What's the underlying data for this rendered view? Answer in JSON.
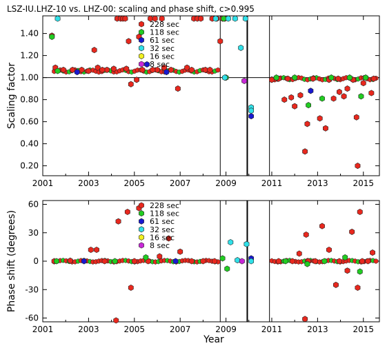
{
  "title": "LSZ-IU.LHZ-10 vs. LHZ-00: scaling and phase shift, c>0.995",
  "colors": {
    "228 sec": "#e8281e",
    "118 sec": "#22cc22",
    "61 sec": "#1818d0",
    "32 sec": "#30e0e8",
    "16 sec": "#f0f020",
    "8 sec": "#c828d8"
  },
  "chart_data": [
    {
      "type": "scatter",
      "ylabel": "Scaling factor",
      "xlabel": "",
      "xlim": [
        2001.0,
        2015.7
      ],
      "ylim": [
        0.11,
        1.56
      ],
      "x_ticks": [
        2001,
        2003,
        2005,
        2007,
        2009,
        2011,
        2013,
        2015
      ],
      "y_ticks": [
        0.2,
        0.4,
        0.6,
        0.8,
        1.0,
        1.2,
        1.4
      ],
      "y_tick_labels": [
        "0.20",
        "0.40",
        "0.60",
        "0.80",
        "1.00",
        "1.20",
        "1.40"
      ],
      "reference_line": 1.0,
      "vertical_lines": [
        {
          "x": 2008.75,
          "style": "thin"
        },
        {
          "x": 2009.93,
          "style": "thick"
        },
        {
          "x": 2010.9,
          "style": "thin"
        }
      ],
      "legend": [
        "228 sec",
        "118 sec",
        "61 sec",
        "32 sec",
        "16 sec",
        "8 sec"
      ],
      "series": [
        {
          "name": "228 sec",
          "points": [
            [
              2001.4,
              1.38
            ],
            [
              2001.55,
              1.09
            ],
            [
              2001.9,
              1.07
            ],
            [
              2002.3,
              1.07
            ],
            [
              2002.7,
              1.07
            ],
            [
              2003.0,
              1.06
            ],
            [
              2003.25,
              1.25
            ],
            [
              2003.4,
              1.09
            ],
            [
              2003.8,
              1.07
            ],
            [
              2004.1,
              1.08
            ],
            [
              2004.25,
              1.55
            ],
            [
              2004.4,
              1.55
            ],
            [
              2004.5,
              1.55
            ],
            [
              2004.6,
              1.55
            ],
            [
              2004.65,
              1.08
            ],
            [
              2004.75,
              1.33
            ],
            [
              2004.85,
              0.94
            ],
            [
              2005.1,
              0.98
            ],
            [
              2005.2,
              1.37
            ],
            [
              2005.35,
              1.07
            ],
            [
              2005.7,
              1.55
            ],
            [
              2005.9,
              1.55
            ],
            [
              2006.0,
              1.07
            ],
            [
              2006.2,
              1.55
            ],
            [
              2006.3,
              1.09
            ],
            [
              2006.9,
              0.9
            ],
            [
              2007.3,
              1.09
            ],
            [
              2007.6,
              1.55
            ],
            [
              2007.75,
              1.55
            ],
            [
              2007.9,
              1.55
            ],
            [
              2008.1,
              1.07
            ],
            [
              2008.4,
              1.55
            ],
            [
              2008.6,
              1.55
            ],
            [
              2008.75,
              1.33
            ],
            [
              2008.85,
              1.55
            ],
            [
              2008.95,
              1.55
            ],
            [
              2011.0,
              0.98
            ],
            [
              2011.3,
              0.99
            ],
            [
              2011.55,
              0.8
            ],
            [
              2011.7,
              0.99
            ],
            [
              2011.85,
              0.82
            ],
            [
              2012.0,
              0.74
            ],
            [
              2012.25,
              0.84
            ],
            [
              2012.45,
              0.33
            ],
            [
              2012.55,
              0.58
            ],
            [
              2012.8,
              0.99
            ],
            [
              2013.1,
              0.63
            ],
            [
              2013.35,
              0.54
            ],
            [
              2013.5,
              0.98
            ],
            [
              2013.7,
              0.81
            ],
            [
              2013.9,
              0.99
            ],
            [
              2013.95,
              0.87
            ],
            [
              2014.15,
              0.83
            ],
            [
              2014.3,
              0.9
            ],
            [
              2014.55,
              0.98
            ],
            [
              2014.7,
              0.64
            ],
            [
              2014.75,
              0.2
            ],
            [
              2015.0,
              0.95
            ],
            [
              2015.35,
              0.86
            ],
            [
              2015.45,
              0.99
            ],
            [
              2003.6,
              1.07
            ],
            [
              2005.8,
              1.07
            ],
            [
              2006.6,
              1.07
            ],
            [
              2007.5,
              1.07
            ],
            [
              2008.3,
              1.07
            ]
          ]
        },
        {
          "name": "118 sec",
          "points": [
            [
              2001.4,
              1.37
            ],
            [
              2001.65,
              1.06
            ],
            [
              2008.9,
              1.55
            ],
            [
              2009.0,
              1.0
            ],
            [
              2012.6,
              0.75
            ],
            [
              2013.2,
              0.81
            ],
            [
              2014.9,
              0.83
            ],
            [
              2015.1,
              1.0
            ],
            [
              2011.2,
              1.0
            ],
            [
              2012.0,
              1.0
            ],
            [
              2013.6,
              1.0
            ],
            [
              2014.4,
              1.0
            ]
          ]
        },
        {
          "name": "61 sec",
          "points": [
            [
              2005.55,
              1.12
            ],
            [
              2010.1,
              0.65
            ],
            [
              2012.7,
              0.88
            ],
            [
              2002.5,
              1.05
            ],
            [
              2006.4,
              1.05
            ]
          ]
        },
        {
          "name": "32 sec",
          "points": [
            [
              2001.65,
              1.55
            ],
            [
              2008.55,
              1.55
            ],
            [
              2009.1,
              1.55
            ],
            [
              2009.4,
              1.55
            ],
            [
              2009.65,
              1.27
            ],
            [
              2009.85,
              1.55
            ],
            [
              2010.1,
              0.73
            ],
            [
              2010.1,
              0.7
            ],
            [
              2008.95,
              1.0
            ]
          ]
        },
        {
          "name": "16 sec",
          "points": []
        },
        {
          "name": "8 sec",
          "points": [
            [
              2009.8,
              0.97
            ]
          ]
        }
      ]
    },
    {
      "type": "scatter",
      "ylabel": "Phase shift (degrees)",
      "xlabel": "Year",
      "xlim": [
        2001.0,
        2015.7
      ],
      "ylim": [
        -64,
        64
      ],
      "x_ticks": [
        2001,
        2003,
        2005,
        2007,
        2009,
        2011,
        2013,
        2015
      ],
      "y_ticks": [
        -60,
        -30,
        0,
        30,
        60
      ],
      "y_tick_labels": [
        "-60",
        "-30",
        "0",
        "30",
        "60"
      ],
      "vertical_lines": [
        {
          "x": 2008.75,
          "style": "thin"
        },
        {
          "x": 2009.93,
          "style": "thick"
        },
        {
          "x": 2010.9,
          "style": "thin"
        }
      ],
      "legend": [
        "228 sec",
        "118 sec",
        "61 sec",
        "32 sec",
        "16 sec",
        "8 sec"
      ],
      "series": [
        {
          "name": "228 sec",
          "points": [
            [
              2001.5,
              0
            ],
            [
              2002.2,
              0.5
            ],
            [
              2003.1,
              12
            ],
            [
              2003.35,
              12
            ],
            [
              2004.2,
              -66
            ],
            [
              2004.3,
              42
            ],
            [
              2004.7,
              52
            ],
            [
              2004.85,
              -28
            ],
            [
              2005.2,
              56
            ],
            [
              2005.6,
              0
            ],
            [
              2006.1,
              5
            ],
            [
              2006.5,
              24
            ],
            [
              2007.0,
              10
            ],
            [
              2008.0,
              0
            ],
            [
              2008.5,
              0
            ],
            [
              2011.3,
              0
            ],
            [
              2011.9,
              0
            ],
            [
              2012.2,
              8
            ],
            [
              2012.45,
              -61
            ],
            [
              2012.5,
              28
            ],
            [
              2012.6,
              0
            ],
            [
              2013.2,
              37
            ],
            [
              2013.5,
              12
            ],
            [
              2013.8,
              -25
            ],
            [
              2013.95,
              0
            ],
            [
              2014.3,
              -10
            ],
            [
              2014.5,
              31
            ],
            [
              2014.75,
              -28
            ],
            [
              2014.85,
              52
            ],
            [
              2014.95,
              0
            ],
            [
              2015.4,
              9
            ],
            [
              2003.7,
              0
            ],
            [
              2005.0,
              0
            ],
            [
              2007.5,
              0
            ],
            [
              2012.9,
              0
            ],
            [
              2015.2,
              0
            ]
          ]
        },
        {
          "name": "118 sec",
          "points": [
            [
              2001.6,
              0
            ],
            [
              2004.15,
              0
            ],
            [
              2008.85,
              3
            ],
            [
              2009.05,
              -8
            ],
            [
              2012.55,
              -3
            ],
            [
              2013.3,
              0
            ],
            [
              2014.2,
              4
            ],
            [
              2014.85,
              -11
            ],
            [
              2005.5,
              4
            ],
            [
              2011.6,
              0
            ]
          ]
        },
        {
          "name": "61 sec",
          "points": [
            [
              2010.1,
              3
            ],
            [
              2002.8,
              0
            ],
            [
              2006.8,
              0
            ]
          ]
        },
        {
          "name": "32 sec",
          "points": [
            [
              2009.2,
              20
            ],
            [
              2009.9,
              18
            ],
            [
              2010.1,
              0
            ],
            [
              2009.5,
              1
            ]
          ]
        },
        {
          "name": "16 sec",
          "points": []
        },
        {
          "name": "8 sec",
          "points": [
            [
              2009.7,
              0
            ]
          ]
        }
      ]
    }
  ]
}
